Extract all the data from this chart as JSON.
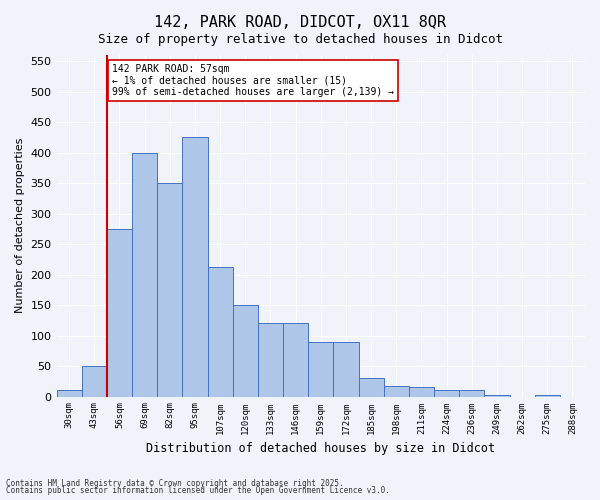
{
  "title_line1": "142, PARK ROAD, DIDCOT, OX11 8QR",
  "title_line2": "Size of property relative to detached houses in Didcot",
  "xlabel": "Distribution of detached houses by size in Didcot",
  "ylabel": "Number of detached properties",
  "bin_labels": [
    "30sqm",
    "43sqm",
    "56sqm",
    "69sqm",
    "82sqm",
    "95sqm",
    "107sqm",
    "120sqm",
    "133sqm",
    "146sqm",
    "159sqm",
    "172sqm",
    "185sqm",
    "198sqm",
    "211sqm",
    "224sqm",
    "236sqm",
    "249sqm",
    "262sqm",
    "275sqm",
    "288sqm"
  ],
  "bar_heights": [
    10,
    50,
    275,
    400,
    350,
    425,
    213,
    150,
    120,
    120,
    90,
    90,
    30,
    18,
    15,
    10,
    10,
    3,
    0,
    2,
    0
  ],
  "bar_color": "#aec6e8",
  "bar_edge_color": "#4472c4",
  "vline_x": 1.5,
  "vline_color": "#cc0000",
  "annotation_text": "142 PARK ROAD: 57sqm\n← 1% of detached houses are smaller (15)\n99% of semi-detached houses are larger (2,139) →",
  "annotation_box_color": "#cc0000",
  "annotation_bg": "#ffffff",
  "ylim": [
    0,
    560
  ],
  "yticks": [
    0,
    50,
    100,
    150,
    200,
    250,
    300,
    350,
    400,
    450,
    500,
    550
  ],
  "footer_line1": "Contains HM Land Registry data © Crown copyright and database right 2025.",
  "footer_line2": "Contains public sector information licensed under the Open Government Licence v3.0.",
  "background_color": "#f0f4fa",
  "grid_color": "#ffffff"
}
